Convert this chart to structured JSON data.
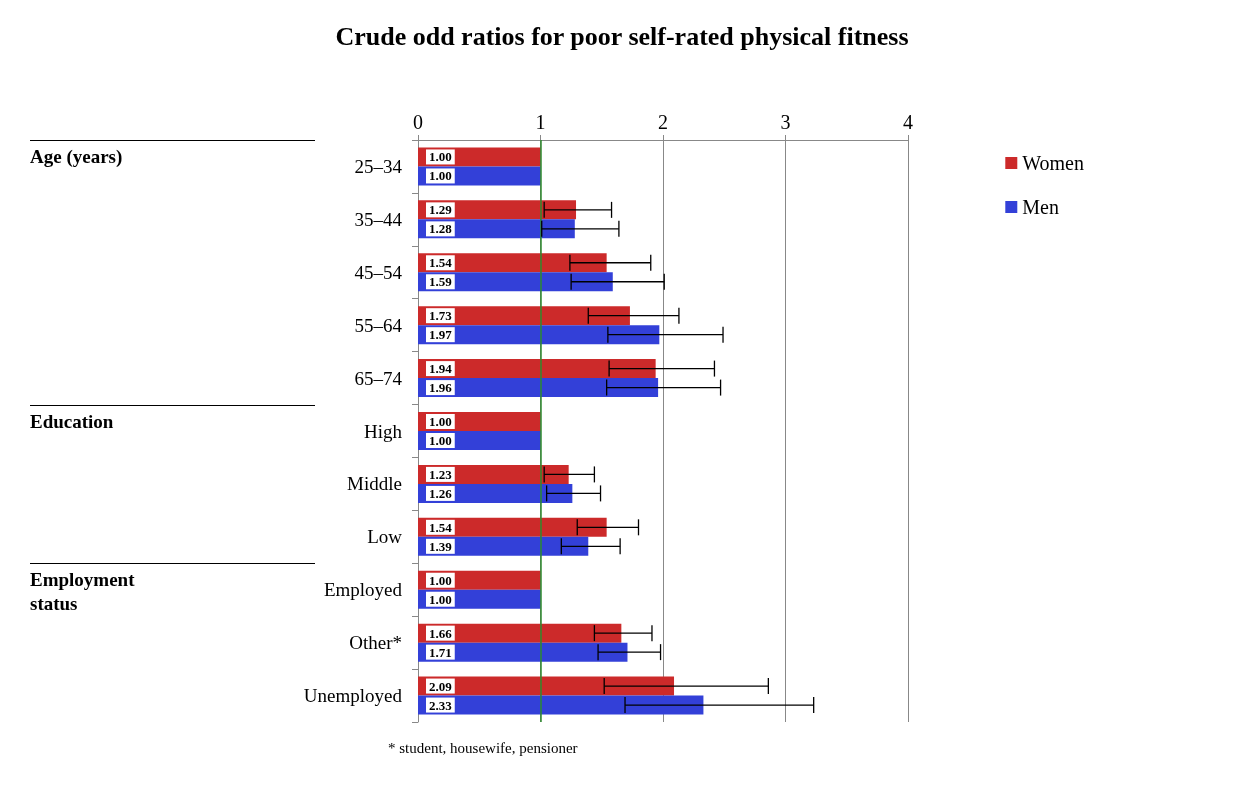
{
  "chart_data": {
    "type": "bar",
    "orientation": "horizontal",
    "title": "Crude odd ratios for poor self-rated physical fitness",
    "categories": [
      "25–34",
      "35–44",
      "45–54",
      "55–64",
      "65–74",
      "High",
      "Middle",
      "Low",
      "Employed",
      "Other*",
      "Unemployed"
    ],
    "series": [
      {
        "name": "Women",
        "color": "#cc2a2a",
        "values": [
          1.0,
          1.29,
          1.54,
          1.73,
          1.94,
          1.0,
          1.23,
          1.54,
          1.0,
          1.66,
          2.09
        ],
        "value_labels": [
          "1.00",
          "1.29",
          "1.54",
          "1.73",
          "1.94",
          "1.00",
          "1.23",
          "1.54",
          "1.00",
          "1.66",
          "2.09"
        ],
        "errors": [
          null,
          [
            1.03,
            1.58
          ],
          [
            1.24,
            1.9
          ],
          [
            1.39,
            2.13
          ],
          [
            1.56,
            2.42
          ],
          null,
          [
            1.03,
            1.44
          ],
          [
            1.3,
            1.8
          ],
          null,
          [
            1.44,
            1.91
          ],
          [
            1.52,
            2.86
          ]
        ]
      },
      {
        "name": "Men",
        "color": "#3340d8",
        "values": [
          1.0,
          1.28,
          1.59,
          1.97,
          1.96,
          1.0,
          1.26,
          1.39,
          1.0,
          1.71,
          2.33
        ],
        "value_labels": [
          "1.00",
          "1.28",
          "1.59",
          "1.97",
          "1.96",
          "1.00",
          "1.26",
          "1.39",
          "1.00",
          "1.71",
          "2.33"
        ],
        "errors": [
          null,
          [
            1.01,
            1.64
          ],
          [
            1.25,
            2.01
          ],
          [
            1.55,
            2.49
          ],
          [
            1.54,
            2.47
          ],
          null,
          [
            1.05,
            1.49
          ],
          [
            1.17,
            1.65
          ],
          null,
          [
            1.47,
            1.98
          ],
          [
            1.69,
            3.23
          ]
        ]
      }
    ],
    "xlim": [
      0,
      4
    ],
    "xticks": [
      0,
      1,
      2,
      3,
      4
    ],
    "grid": "x",
    "legend": "top right",
    "ref_lines": [
      {
        "axis": "x",
        "value": 1,
        "color": "#2e8b2e"
      }
    ],
    "annotations": [
      "Age (years)",
      "Education",
      "Employment status",
      "* student, housewife, pensioner"
    ]
  }
}
